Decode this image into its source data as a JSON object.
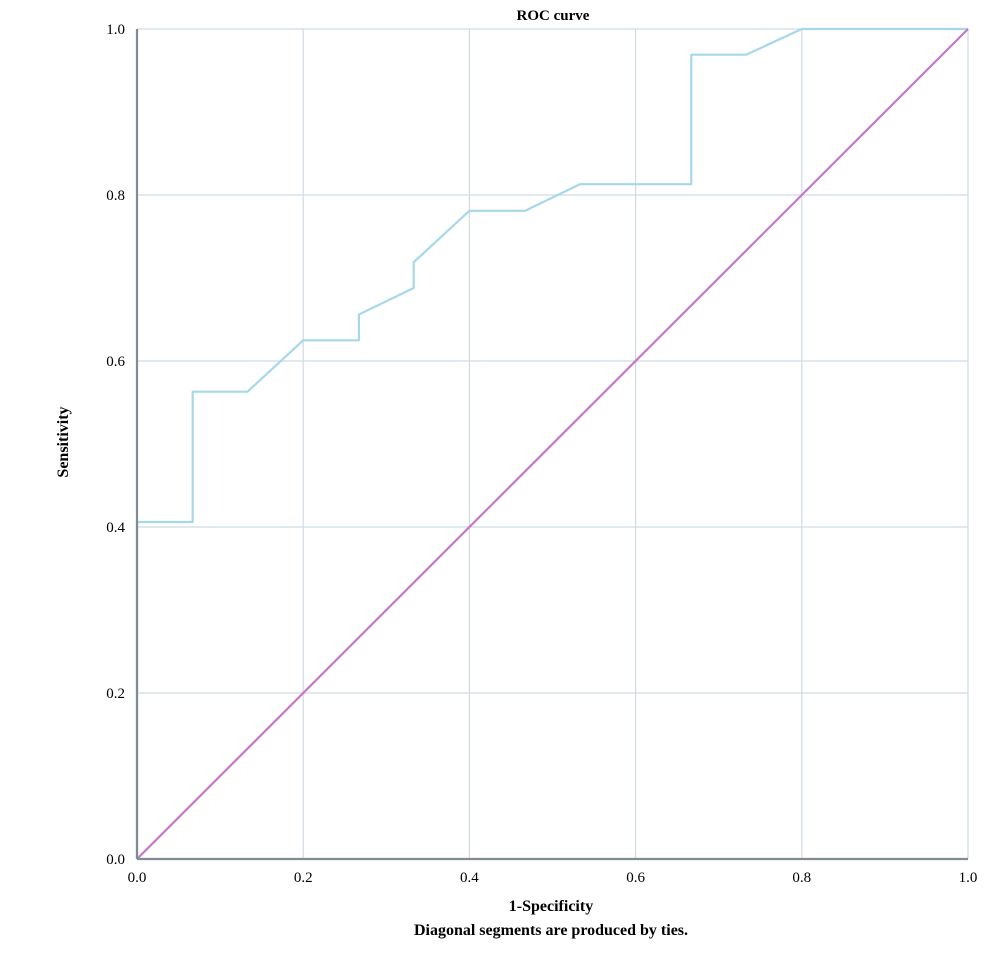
{
  "chart_data": {
    "type": "line",
    "title": "ROC curve",
    "xlabel": "1-Specificity",
    "ylabel": "Sensitivity",
    "caption": "Diagonal segments are produced by ties.",
    "xlim": [
      0.0,
      1.0
    ],
    "ylim": [
      0.0,
      1.0
    ],
    "xticks": [
      "0.0",
      "0.2",
      "0.4",
      "0.6",
      "0.8",
      "1.0"
    ],
    "yticks": [
      "0.0",
      "0.2",
      "0.4",
      "0.6",
      "0.8",
      "1.0"
    ],
    "grid": true,
    "series": [
      {
        "color": "#a6d8ea",
        "x": [
          0.0,
          0.0,
          0.067,
          0.067,
          0.133,
          0.2,
          0.267,
          0.267,
          0.333,
          0.333,
          0.4,
          0.467,
          0.533,
          0.667,
          0.667,
          0.733,
          0.8,
          1.0
        ],
        "y": [
          0.0,
          0.406,
          0.406,
          0.563,
          0.563,
          0.625,
          0.625,
          0.656,
          0.688,
          0.719,
          0.781,
          0.781,
          0.813,
          0.813,
          0.969,
          0.969,
          1.0,
          1.0
        ]
      },
      {
        "color": "#c678c6",
        "x": [
          0.0,
          1.0
        ],
        "y": [
          0.0,
          1.0
        ]
      }
    ]
  }
}
